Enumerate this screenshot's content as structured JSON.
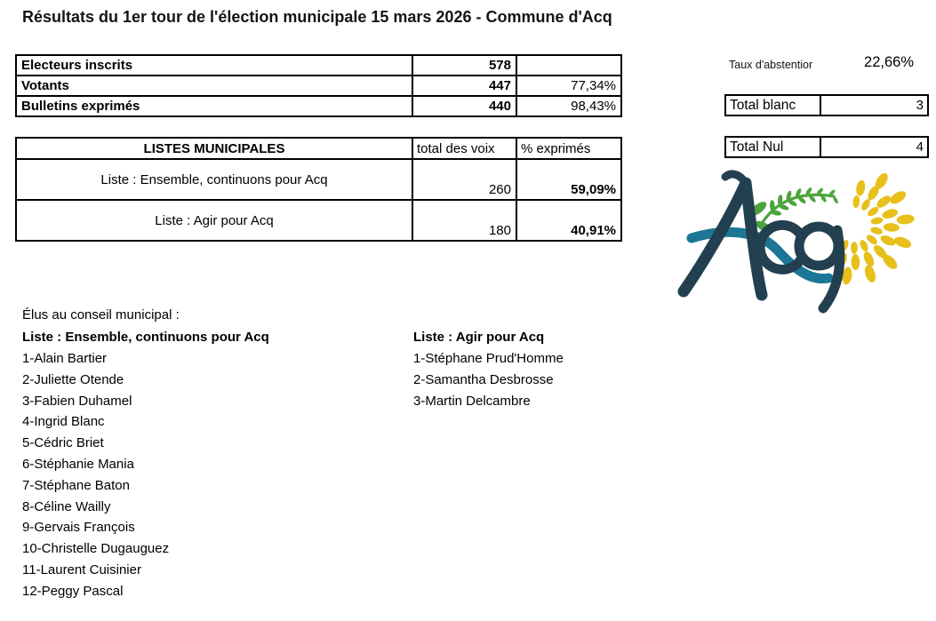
{
  "title": "Résultats du 1er tour de l'élection municipale 15 mars 2026 - Commune d'Acq",
  "summary_table": {
    "rows": [
      {
        "label": "Electeurs inscrits",
        "value": "578",
        "pct": ""
      },
      {
        "label": "Votants",
        "value": "447",
        "pct": "77,34%"
      },
      {
        "label": "Bulletins exprimés",
        "value": "440",
        "pct": "98,43%"
      }
    ]
  },
  "abstention": {
    "label": "Taux d'abstentior",
    "value": "22,66%"
  },
  "total_blanc": {
    "label": "Total blanc",
    "value": "3"
  },
  "total_nul": {
    "label": "Total Nul",
    "value": "4"
  },
  "results_table": {
    "headers": {
      "lists": "LISTES MUNICIPALES",
      "votes": "total des voix",
      "pct": "% exprimés"
    },
    "rows": [
      {
        "list": "Liste : Ensemble, continuons pour Acq",
        "votes": "260",
        "pct": "59,09%"
      },
      {
        "list": "Liste : Agir pour Acq",
        "votes": "180",
        "pct": "40,91%"
      }
    ]
  },
  "elected": {
    "heading": "Élus au conseil municipal :",
    "columns": [
      {
        "list_title": "Liste : Ensemble, continuons pour Acq",
        "members": [
          "1-Alain Bartier",
          "2-Juliette Otende",
          "3-Fabien Duhamel",
          "4-Ingrid Blanc",
          "5-Cédric Briet",
          "6-Stéphanie Mania",
          "7-Stéphane Baton",
          "8-Céline Wailly",
          "9-Gervais François",
          "10-Christelle Dugauguez",
          "11-Laurent Cuisinier",
          "12-Peggy Pascal"
        ]
      },
      {
        "list_title": "Liste  : Agir pour Acq",
        "members": [
          "1-Stéphane Prud'Homme",
          "2-Samantha Desbrosse",
          "3-Martin Delcambre"
        ]
      }
    ]
  },
  "logo": {
    "text": "Acq",
    "colors": {
      "navy": "#22404f",
      "green": "#4ca43c",
      "yellow": "#e8c01b",
      "teal": "#1b7795"
    }
  }
}
